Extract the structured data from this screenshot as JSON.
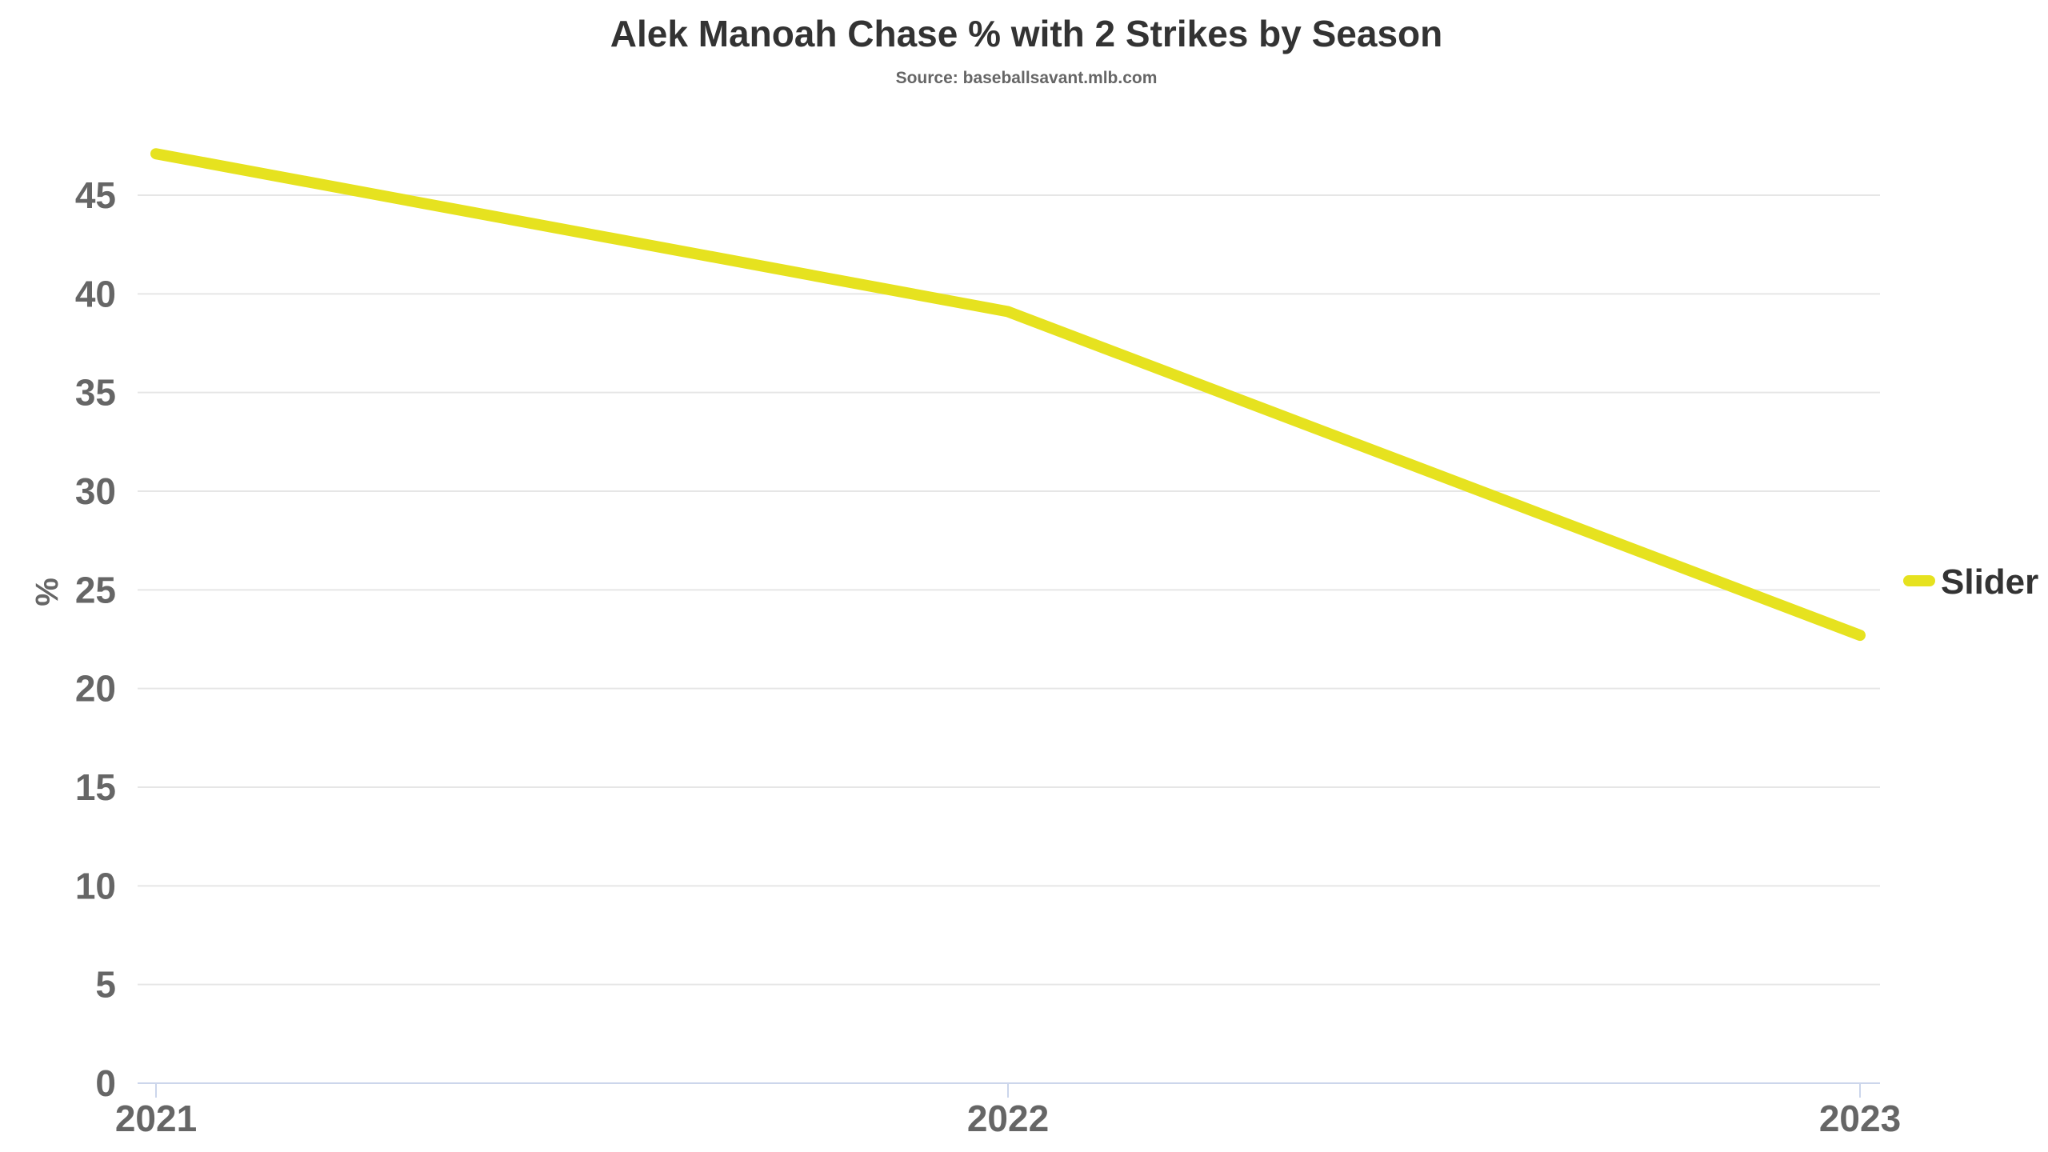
{
  "chart_data": {
    "type": "line",
    "title": "Alek Manoah Chase % with 2 Strikes by Season",
    "subtitle": "Source: baseballsavant.mlb.com",
    "xlabel": "",
    "ylabel": "%",
    "categories": [
      "2021",
      "2022",
      "2023"
    ],
    "series": [
      {
        "name": "Slider",
        "values": [
          47.1,
          39.1,
          22.7
        ],
        "color": "#e6e21f"
      }
    ],
    "ylim": [
      0,
      45
    ],
    "yticks": [
      0,
      5,
      10,
      15,
      20,
      25,
      30,
      35,
      40,
      45
    ],
    "grid": true,
    "legend_position": "right"
  }
}
